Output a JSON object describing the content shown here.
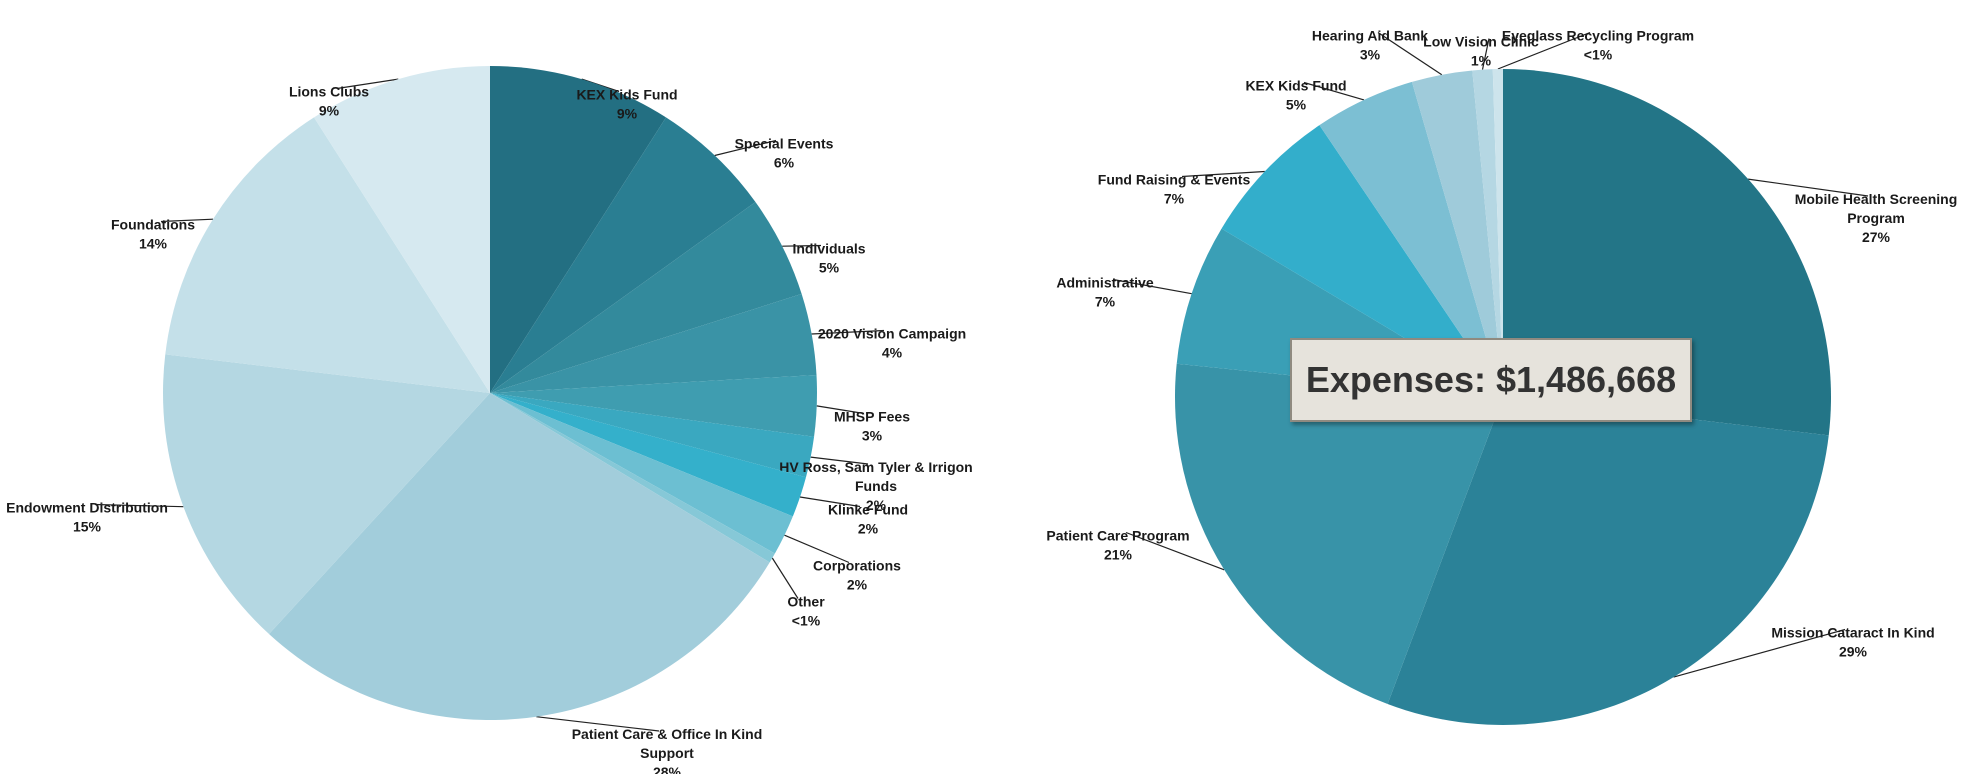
{
  "chart_data": [
    {
      "type": "pie",
      "slices": [
        {
          "label": [
            "KEX Kids Fund"
          ],
          "pct_text": "9%",
          "value": 9,
          "color": "#236f82"
        },
        {
          "label": [
            "Special Events"
          ],
          "pct_text": "6%",
          "value": 6,
          "color": "#2a7e92"
        },
        {
          "label": [
            "Individuals"
          ],
          "pct_text": "5%",
          "value": 5,
          "color": "#338a9c"
        },
        {
          "label": [
            "2020 Vision Campaign"
          ],
          "pct_text": "4%",
          "value": 4,
          "color": "#3a93a6"
        },
        {
          "label": [
            "MHSP Fees"
          ],
          "pct_text": "3%",
          "value": 3,
          "color": "#3f9db0"
        },
        {
          "label": [
            "HV Ross, Sam Tyler & Irrigon",
            "Funds"
          ],
          "pct_text": "2%",
          "value": 2,
          "color": "#3aa8c0"
        },
        {
          "label": [
            "Klinke Fund"
          ],
          "pct_text": "2%",
          "value": 2,
          "color": "#34b0cb"
        },
        {
          "label": [
            "Corporations"
          ],
          "pct_text": "2%",
          "value": 2,
          "color": "#6cbfd2"
        },
        {
          "label": [
            "Other"
          ],
          "pct_text": "<1%",
          "value": 0.5,
          "color": "#86c8d7"
        },
        {
          "label": [
            "Patient Care & Office In Kind",
            "Support"
          ],
          "pct_text": "28%",
          "value": 28,
          "color": "#a2cddb"
        },
        {
          "label": [
            "Endowment Distribution"
          ],
          "pct_text": "15%",
          "value": 15,
          "color": "#b4d7e2"
        },
        {
          "label": [
            "Foundations"
          ],
          "pct_text": "14%",
          "value": 14,
          "color": "#c4e0e9"
        },
        {
          "label": [
            "Lions Clubs"
          ],
          "pct_text": "9%",
          "value": 9,
          "color": "#d6e9f0"
        }
      ]
    },
    {
      "type": "pie",
      "callout": "Expenses: $1,486,668",
      "slices": [
        {
          "label": [
            "Mobile Health Screening",
            "Program"
          ],
          "pct_text": "27%",
          "value": 27,
          "color": "#237587"
        },
        {
          "label": [
            "Mission Cataract In Kind"
          ],
          "pct_text": "29%",
          "value": 29,
          "color": "#2b8298"
        },
        {
          "label": [
            "Patient Care Program"
          ],
          "pct_text": "21%",
          "value": 21,
          "color": "#3893a8"
        },
        {
          "label": [
            "Administrative"
          ],
          "pct_text": "7%",
          "value": 7,
          "color": "#3a9fb6"
        },
        {
          "label": [
            "Fund Raising & Events"
          ],
          "pct_text": "7%",
          "value": 7,
          "color": "#33aecb"
        },
        {
          "label": [
            "KEX Kids Fund"
          ],
          "pct_text": "5%",
          "value": 5,
          "color": "#7cbfd3"
        },
        {
          "label": [
            "Hearing Aid Bank"
          ],
          "pct_text": "3%",
          "value": 3,
          "color": "#9fcbda"
        },
        {
          "label": [
            "Low Vision Clinic"
          ],
          "pct_text": "1%",
          "value": 1,
          "color": "#b5d7e3"
        },
        {
          "label": [
            "Eyeglass Recycling Program"
          ],
          "pct_text": "<1%",
          "value": 0.5,
          "color": "#cde4ec"
        }
      ]
    }
  ]
}
